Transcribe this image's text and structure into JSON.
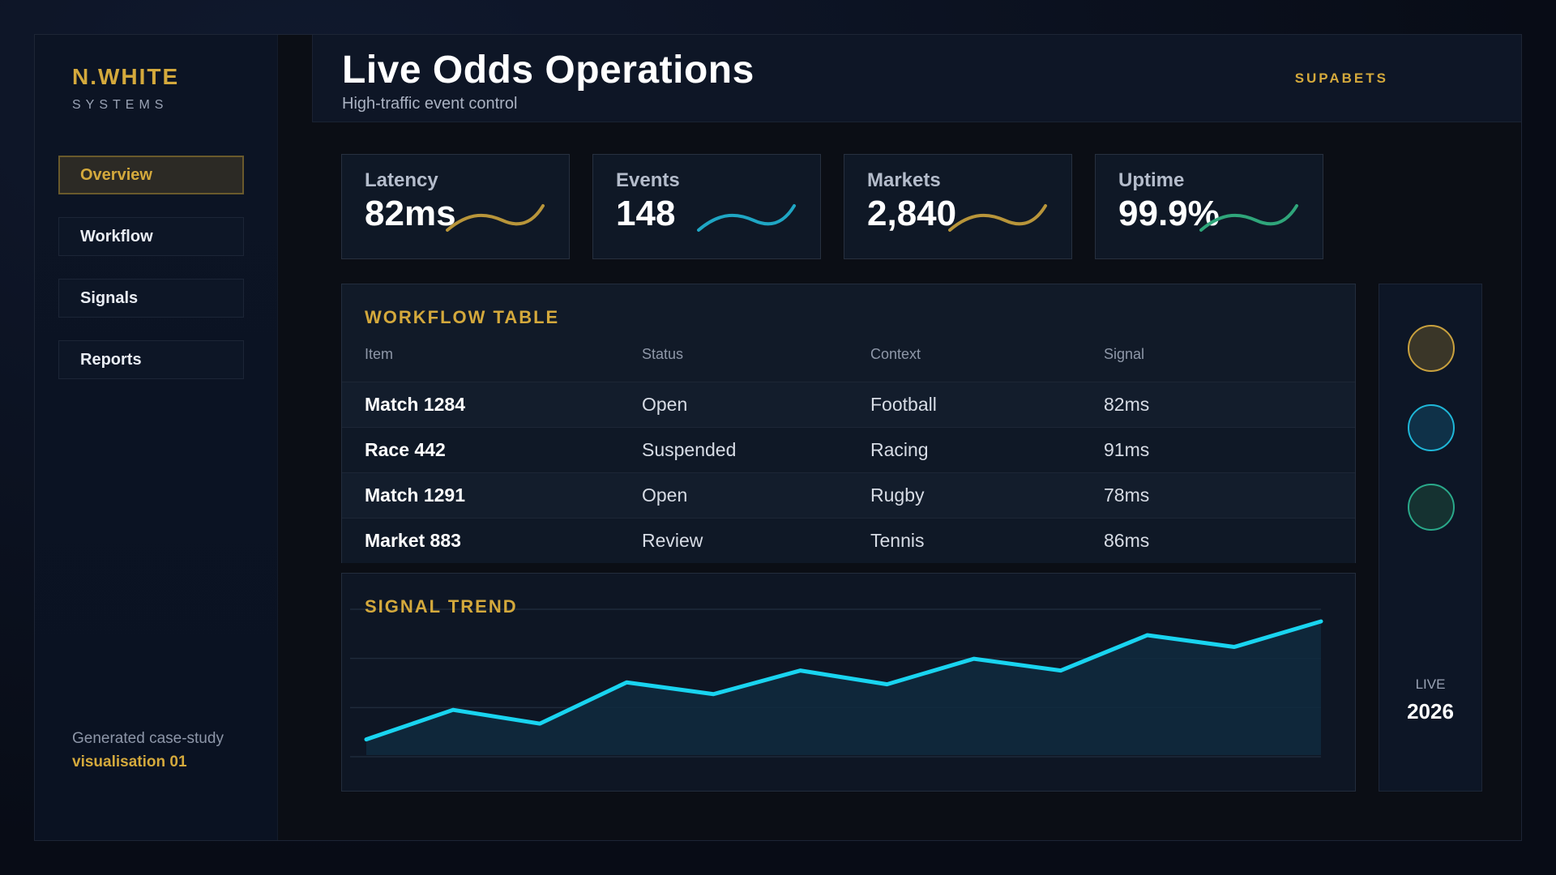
{
  "sidebar": {
    "brand_name": "N.WHITE",
    "brand_sub": "SYSTEMS",
    "nav": [
      {
        "label": "Overview",
        "active": true
      },
      {
        "label": "Workflow",
        "active": false
      },
      {
        "label": "Signals",
        "active": false
      },
      {
        "label": "Reports",
        "active": false
      }
    ],
    "footer_line1": "Generated case-study",
    "footer_line2": "visualisation 01"
  },
  "header": {
    "title": "Live Odds Operations",
    "subtitle": "High-traffic event control",
    "brand": "SUPABETS"
  },
  "kpis": [
    {
      "label": "Latency",
      "value": "82ms",
      "spark_color": "#b8953a"
    },
    {
      "label": "Events",
      "value": "148",
      "spark_color": "#1fa6c4"
    },
    {
      "label": "Markets",
      "value": "2,840",
      "spark_color": "#b8953a"
    },
    {
      "label": "Uptime",
      "value": "99.9%",
      "spark_color": "#2fa57a"
    }
  ],
  "workflow_table": {
    "title": "WORKFLOW TABLE",
    "columns": [
      "Item",
      "Status",
      "Context",
      "Signal"
    ],
    "rows": [
      [
        "Match 1284",
        "Open",
        "Football",
        "82ms"
      ],
      [
        "Race 442",
        "Suspended",
        "Racing",
        "91ms"
      ],
      [
        "Match 1291",
        "Open",
        "Rugby",
        "78ms"
      ],
      [
        "Market 883",
        "Review",
        "Tennis",
        "86ms"
      ]
    ]
  },
  "signal_trend": {
    "title": "SIGNAL TREND",
    "line_color": "#19d4f0"
  },
  "chart_data": {
    "type": "area",
    "title": "SIGNAL TREND",
    "x": [
      1,
      2,
      3,
      4,
      5,
      6,
      7,
      8,
      9,
      10,
      11,
      12
    ],
    "series": [
      {
        "values": [
          8,
          23,
          16,
          37,
          31,
          43,
          36,
          49,
          43,
          61,
          55,
          68
        ]
      }
    ],
    "ylim": [
      0,
      75
    ],
    "grid": true
  },
  "rail": {
    "dots": [
      {
        "fill": "#3a3628",
        "stroke": "#c9a13e"
      },
      {
        "fill": "#0f3148",
        "stroke": "#1fb7d8"
      },
      {
        "fill": "#153231",
        "stroke": "#2aa98a"
      }
    ],
    "live_label": "LIVE",
    "year": "2026"
  },
  "colors": {
    "accent_gold": "#d4a93c",
    "accent_cyan": "#19d4f0"
  }
}
